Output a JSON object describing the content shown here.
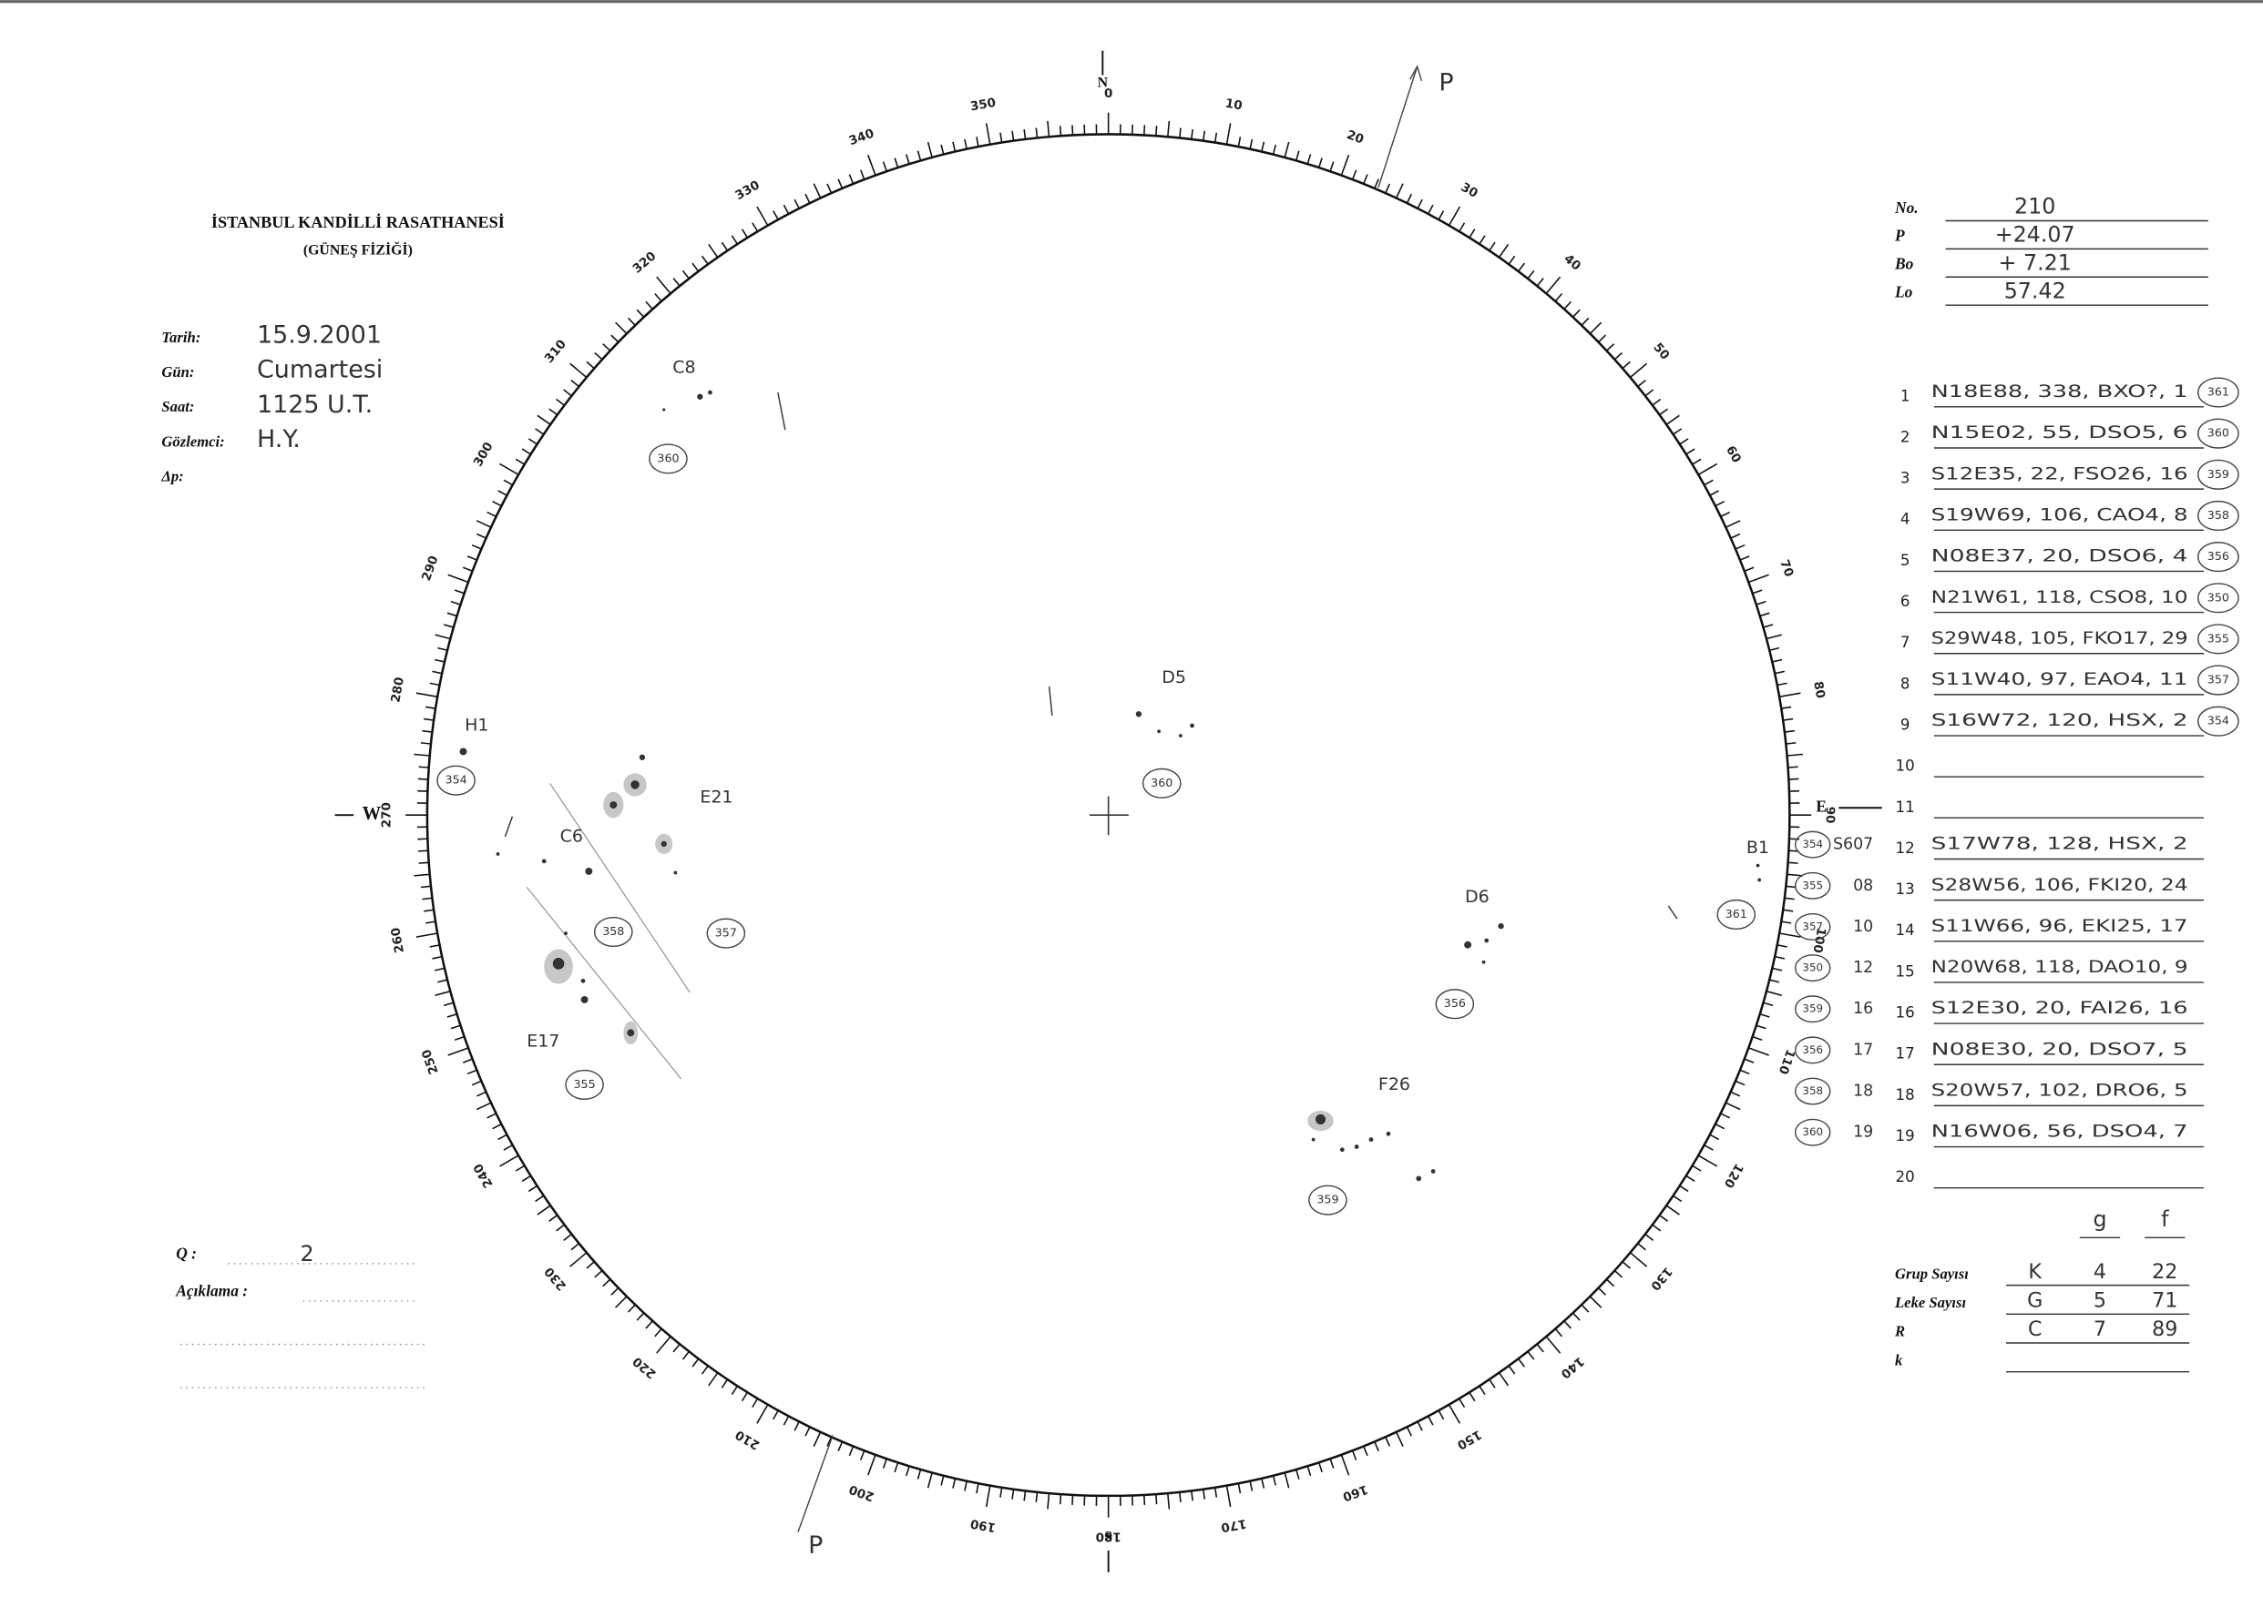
{
  "header": {
    "institution": "İSTANBUL KANDİLLİ RASATHANESİ",
    "department": "(GÜNEŞ FİZİĞİ)"
  },
  "observation": [
    {
      "label": "Tarih:",
      "value": "15.9.2001"
    },
    {
      "label": "Gün:",
      "value": "Cumartesi"
    },
    {
      "label": "Saat:",
      "value": "1125 U.T."
    },
    {
      "label": "Gözlemci:",
      "value": "H.Y."
    },
    {
      "label": "Δp:"
    }
  ],
  "parameters": [
    {
      "label": "No.",
      "value": "210"
    },
    {
      "label": "P",
      "value": "+24.07"
    },
    {
      "label": "Bo",
      "value": "+ 7.21"
    },
    {
      "label": "Lo",
      "value": "57.42"
    }
  ],
  "disk": {
    "cardinals": {
      "north": "N",
      "south": "S",
      "east": "E",
      "west": "W"
    },
    "pole_label": "P",
    "degree_labels": [
      0,
      10,
      20,
      30,
      40,
      50,
      60,
      70,
      80,
      90,
      100,
      110,
      120,
      130,
      140,
      150,
      160,
      170,
      180,
      190,
      200,
      210,
      220,
      230,
      240,
      250,
      260,
      270,
      280,
      290,
      300,
      310,
      320,
      330,
      340,
      350
    ],
    "groups": [
      {
        "label": "C8",
        "badge": "360"
      },
      {
        "label": "D5",
        "badge": "360"
      },
      {
        "label": "H1",
        "badge": "354"
      },
      {
        "label": "E21",
        "badge": "357"
      },
      {
        "label": "C6",
        "badge": "358"
      },
      {
        "label": "E17",
        "badge": "355"
      },
      {
        "label": "D6",
        "badge": "356"
      },
      {
        "label": "F26",
        "badge": "359"
      },
      {
        "label": "B1",
        "badge": "361"
      }
    ]
  },
  "regions": {
    "rows": [
      {
        "number": 1,
        "entry": "N18E88, 338, BXO?, 1",
        "badge": "361"
      },
      {
        "number": 2,
        "entry": "N15E02, 55, DSO5, 6",
        "badge": "360"
      },
      {
        "number": 3,
        "entry": "S12E35, 22, FSO26, 16",
        "badge": "359"
      },
      {
        "number": 4,
        "entry": "S19W69, 106, CAO4, 8",
        "badge": "358"
      },
      {
        "number": 5,
        "entry": "N08E37, 20, DSO6, 4",
        "badge": "356"
      },
      {
        "number": 6,
        "entry": "N21W61, 118, CSO8, 10",
        "badge": "350"
      },
      {
        "number": 7,
        "entry": "S29W48, 105, FKO17, 29",
        "badge": "355"
      },
      {
        "number": 8,
        "entry": "S11W40, 97, EAO4, 11",
        "badge": "357"
      },
      {
        "number": 9,
        "entry": "S16W72, 120, HSX, 2",
        "badge": "354"
      },
      {
        "number": 10
      },
      {
        "number": 11
      },
      {
        "number": 12,
        "entry": "S17W78, 128, HSX, 2",
        "prefix_badge": "354",
        "note": "S607"
      },
      {
        "number": 13,
        "entry": "S28W56, 106, FKI20, 24",
        "prefix_badge": "355",
        "note": "08"
      },
      {
        "number": 14,
        "entry": "S11W66, 96, EKI25, 17",
        "prefix_badge": "357",
        "note": "10"
      },
      {
        "number": 15,
        "entry": "N20W68, 118, DAO10, 9",
        "prefix_badge": "350",
        "note": "12"
      },
      {
        "number": 16,
        "entry": "S12E30, 20, FAI26, 16",
        "prefix_badge": "359",
        "note": "16"
      },
      {
        "number": 17,
        "entry": "N08E30, 20, DSO7, 5",
        "prefix_badge": "356",
        "note": "17"
      },
      {
        "number": 18,
        "entry": "S20W57, 102, DRO6, 5",
        "prefix_badge": "358",
        "note": "18"
      },
      {
        "number": 19,
        "entry": "N16W06, 56, DSO4, 7",
        "prefix_badge": "360",
        "note": "19"
      },
      {
        "number": 20
      }
    ]
  },
  "summary": {
    "columns": [
      "g",
      "f"
    ],
    "rows": [
      {
        "label": "Grup Sayısı",
        "letter": "K",
        "g": "4",
        "f": "22"
      },
      {
        "label": "Leke Sayısı",
        "letter": "G",
        "g": "5",
        "f": "71"
      },
      {
        "label": "R",
        "letter": "C",
        "g": "7",
        "f": "89"
      },
      {
        "label": "k"
      }
    ]
  },
  "notes": {
    "q_label": "Q :",
    "q_value": "2",
    "comment_label": "Açıklama :"
  }
}
